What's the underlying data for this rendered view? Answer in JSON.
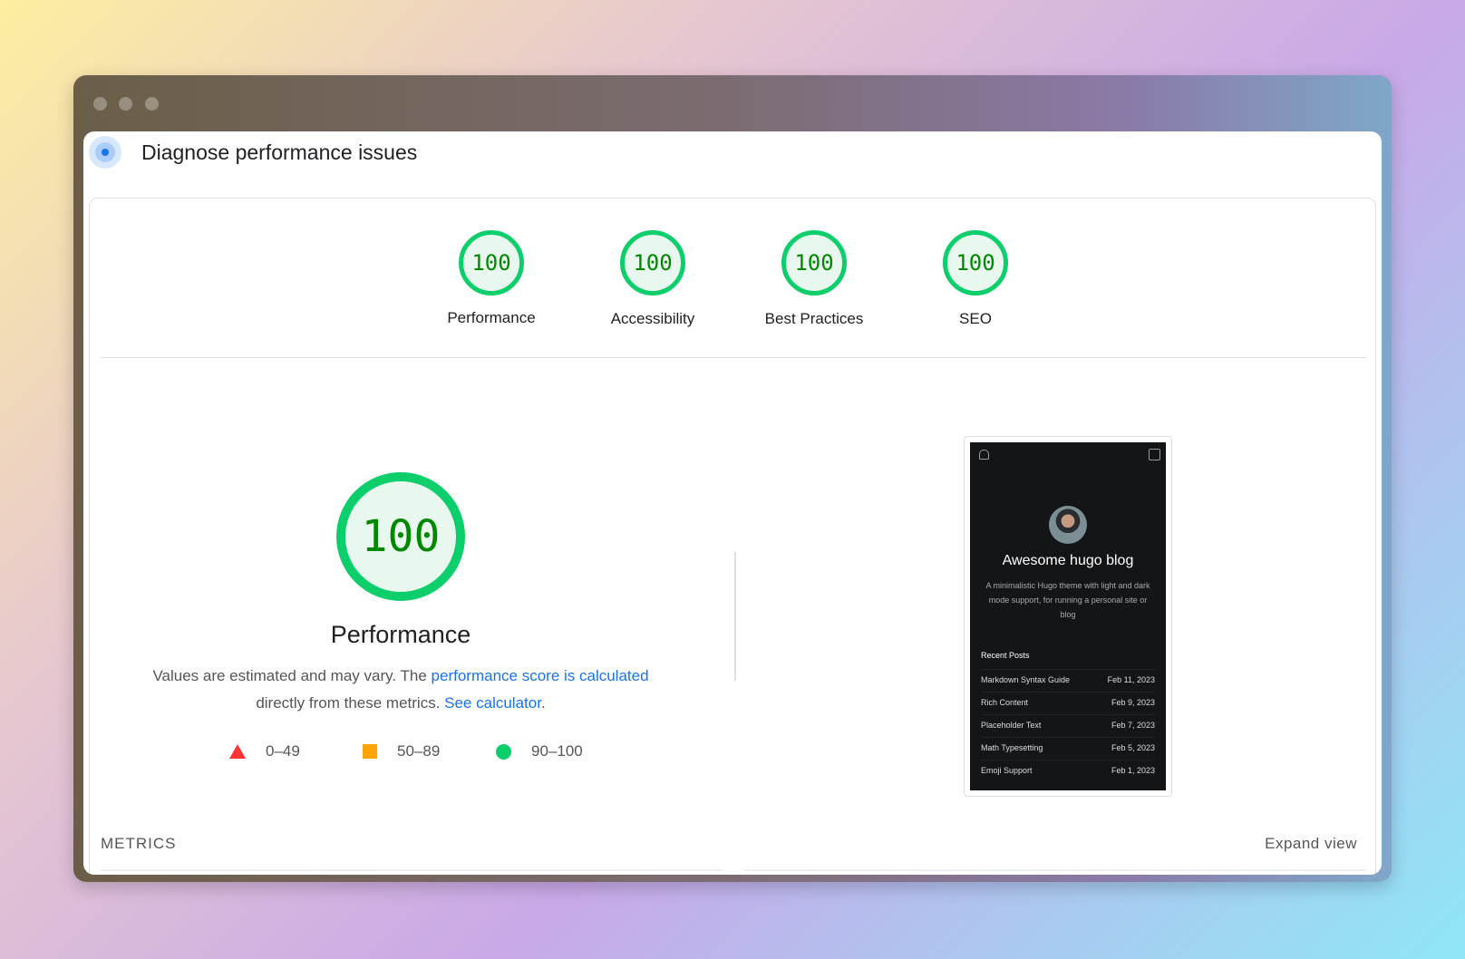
{
  "header": {
    "title": "Diagnose performance issues"
  },
  "categories": [
    {
      "label": "Performance",
      "score": "100"
    },
    {
      "label": "Accessibility",
      "score": "100"
    },
    {
      "label": "Best Practices",
      "score": "100"
    },
    {
      "label": "SEO",
      "score": "100"
    }
  ],
  "main": {
    "score": "100",
    "title": "Performance",
    "desc_prefix": "Values are estimated and may vary. The ",
    "desc_link1": "performance score is calculated",
    "desc_mid": " directly from these metrics. ",
    "desc_link2": "See calculator",
    "desc_suffix": "."
  },
  "legend": [
    {
      "label": "0–49",
      "color": "#ff3333",
      "shape": "triangle"
    },
    {
      "label": "50–89",
      "color": "#ffa400",
      "shape": "square"
    },
    {
      "label": "90–100",
      "color": "#0cce6b",
      "shape": "circle"
    }
  ],
  "screenshot": {
    "blog_title": "Awesome hugo blog",
    "blog_desc": "A minimalistic Hugo theme with light and dark mode support, for running a personal site or blog",
    "recent_heading": "Recent Posts",
    "posts": [
      {
        "title": "Markdown Syntax Guide",
        "date": "Feb 11, 2023"
      },
      {
        "title": "Rich Content",
        "date": "Feb 9, 2023"
      },
      {
        "title": "Placeholder Text",
        "date": "Feb 7, 2023"
      },
      {
        "title": "Math Typesetting",
        "date": "Feb 5, 2023"
      },
      {
        "title": "Emoji Support",
        "date": "Feb 1, 2023"
      }
    ]
  },
  "metrics": {
    "label": "METRICS",
    "expand": "Expand view"
  }
}
